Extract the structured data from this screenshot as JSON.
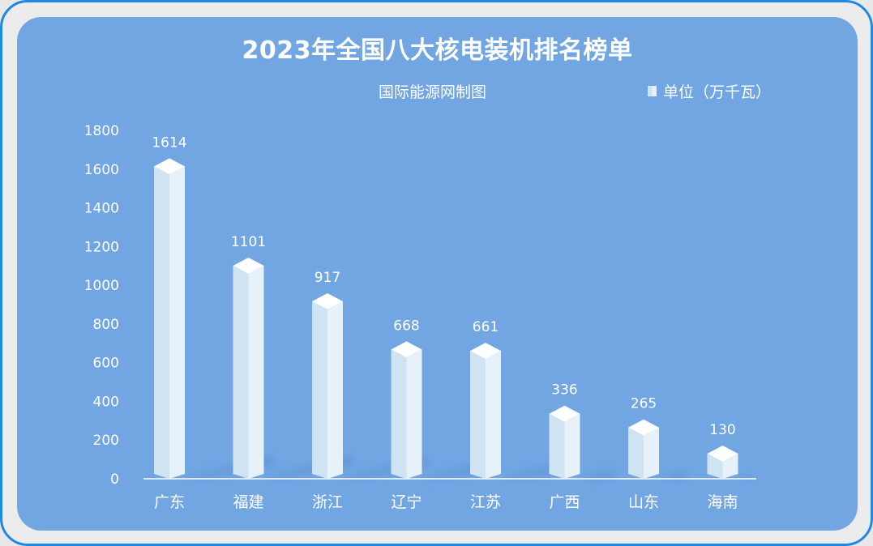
{
  "chart_data": {
    "type": "bar",
    "title": "2023年全国八大核电装机排名榜单",
    "subtitle": "国际能源网制图",
    "legend": {
      "label": "单位（万千瓦）",
      "position": "top-right"
    },
    "categories": [
      "广东",
      "福建",
      "浙江",
      "辽宁",
      "江苏",
      "广西",
      "山东",
      "海南"
    ],
    "series": [
      {
        "name": "单位（万千瓦）",
        "values": [
          1614,
          1101,
          917,
          668,
          661,
          336,
          265,
          130
        ]
      }
    ],
    "yticks": [
      "0",
      "200",
      "400",
      "600",
      "800",
      "1000",
      "1200",
      "1400",
      "1600",
      "1800"
    ],
    "ylim": [
      0,
      1800
    ],
    "grid": false,
    "colors": {
      "background": "#71a6e3",
      "bar_front": "#cfe3f3",
      "bar_side": "#e6f1fa",
      "bar_top": "#ffffff",
      "shadow": "#4f7fbf"
    }
  }
}
